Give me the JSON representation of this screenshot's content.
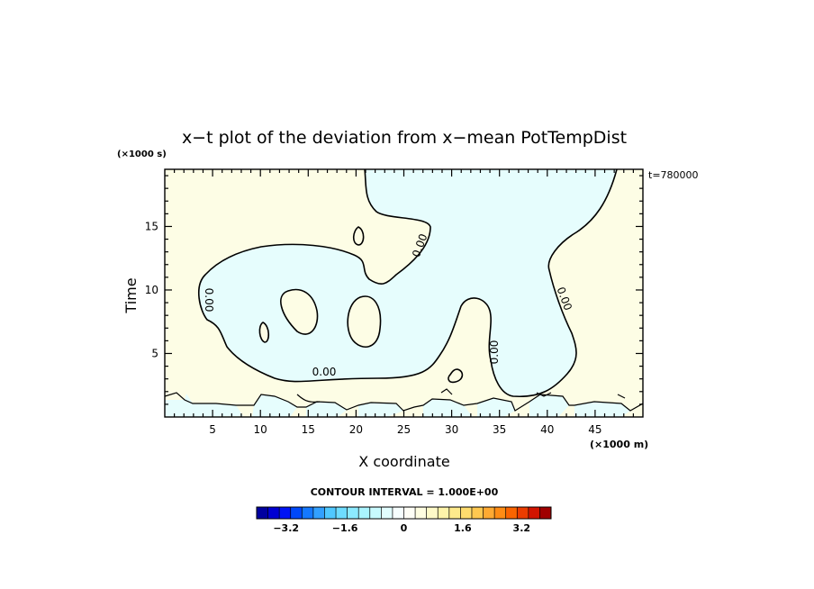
{
  "chart_data": {
    "type": "contour",
    "title": "x−t plot of the deviation from x−mean PotTempDist",
    "xlabel": "X coordinate",
    "ylabel": "Time",
    "x_unit": "(×1000 m)",
    "y_unit": "(×1000 s)",
    "time_label": "t=780000",
    "xlim": [
      0,
      50
    ],
    "ylim": [
      0,
      19.5
    ],
    "x_ticks": [
      5,
      10,
      15,
      20,
      25,
      30,
      35,
      40,
      45
    ],
    "x_ticklabels": [
      "5",
      "10",
      "15",
      "20",
      "25",
      "30",
      "35",
      "40",
      "45"
    ],
    "y_ticks": [
      5,
      10,
      15
    ],
    "y_ticklabels": [
      "5",
      "10",
      "15"
    ],
    "contour_labels": [
      "0.00",
      "0.00",
      "0.00",
      "0.00",
      "0.00"
    ],
    "contour_interval_text": "CONTOUR INTERVAL = 1.000E+00",
    "regions": {
      "negative_color": "#e6fdfd",
      "positive_color": "#fdfde5"
    },
    "colorbar": {
      "min": -4,
      "max": 4,
      "step": 0.4,
      "ticks": [
        -3.2,
        -1.6,
        0,
        1.6,
        3.2
      ],
      "ticklabels": [
        "−3.2",
        "−1.6",
        "0",
        "1.6",
        "3.2"
      ],
      "colors": [
        "#0000a0",
        "#0000d2",
        "#0014f5",
        "#0048fa",
        "#1478ff",
        "#32a0ff",
        "#50c8ff",
        "#6edcff",
        "#8ceaff",
        "#aaf4ff",
        "#c8fafe",
        "#e1fdfe",
        "#f6fefe",
        "#fefef6",
        "#fefde1",
        "#fefac8",
        "#fef4aa",
        "#feea8c",
        "#fedc6e",
        "#fec850",
        "#ffaa32",
        "#ff8c14",
        "#fa6400",
        "#eb3c00",
        "#d21400",
        "#a00000"
      ]
    }
  }
}
